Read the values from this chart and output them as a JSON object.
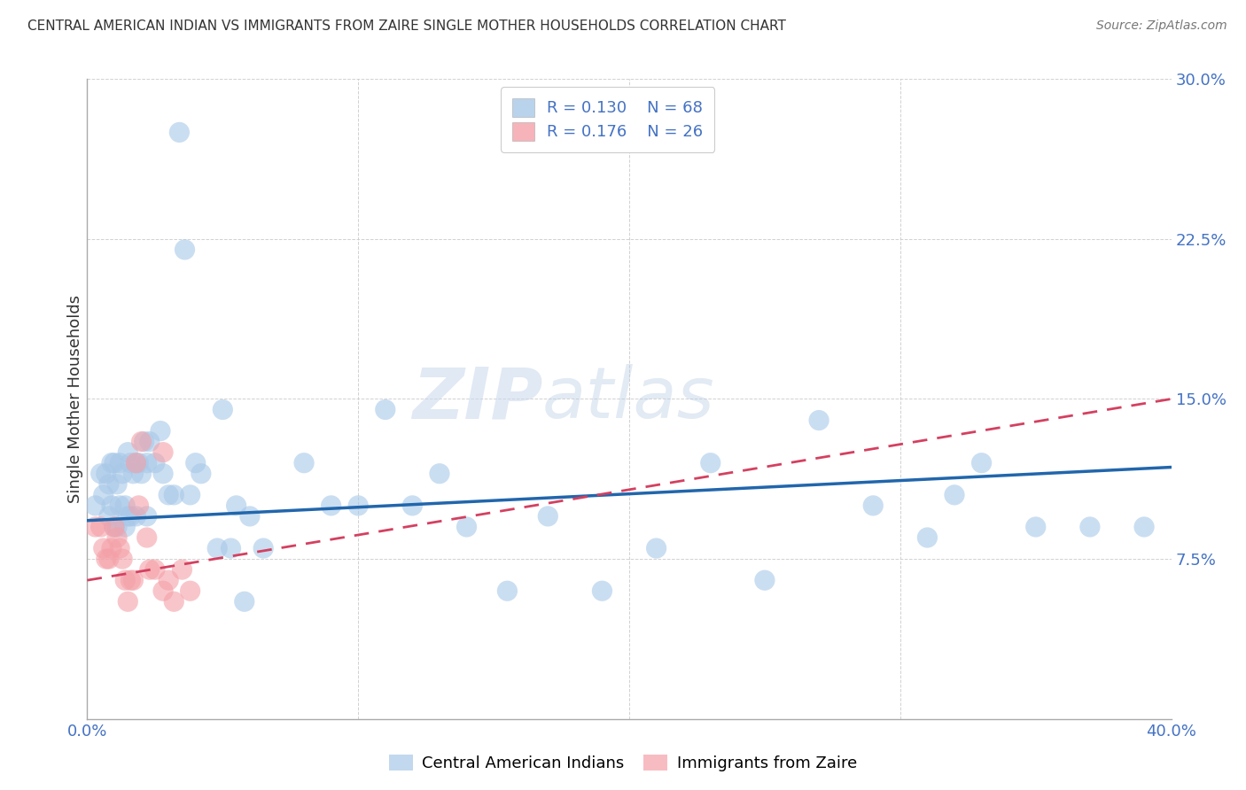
{
  "title": "CENTRAL AMERICAN INDIAN VS IMMIGRANTS FROM ZAIRE SINGLE MOTHER HOUSEHOLDS CORRELATION CHART",
  "source": "Source: ZipAtlas.com",
  "ylabel": "Single Mother Households",
  "xlim": [
    0.0,
    0.4
  ],
  "ylim": [
    0.0,
    0.3
  ],
  "xticks": [
    0.0,
    0.1,
    0.2,
    0.3,
    0.4
  ],
  "xticklabels": [
    "0.0%",
    "",
    "",
    "",
    "40.0%"
  ],
  "yticks": [
    0.0,
    0.075,
    0.15,
    0.225,
    0.3
  ],
  "yticklabels": [
    "",
    "7.5%",
    "15.0%",
    "22.5%",
    "30.0%"
  ],
  "legend1_R": "0.130",
  "legend1_N": "68",
  "legend2_R": "0.176",
  "legend2_N": "26",
  "blue_color": "#a8c8e8",
  "pink_color": "#f4a0a8",
  "blue_line_color": "#2166ac",
  "pink_line_color": "#d44060",
  "watermark_zip": "ZIP",
  "watermark_atlas": "atlas",
  "blue_scatter_x": [
    0.003,
    0.005,
    0.006,
    0.007,
    0.008,
    0.008,
    0.009,
    0.009,
    0.01,
    0.01,
    0.011,
    0.011,
    0.012,
    0.012,
    0.013,
    0.014,
    0.014,
    0.015,
    0.015,
    0.016,
    0.016,
    0.017,
    0.018,
    0.018,
    0.019,
    0.02,
    0.021,
    0.022,
    0.022,
    0.023,
    0.025,
    0.027,
    0.028,
    0.03,
    0.032,
    0.034,
    0.036,
    0.038,
    0.04,
    0.05,
    0.055,
    0.06,
    0.065,
    0.08,
    0.09,
    0.1,
    0.11,
    0.12,
    0.13,
    0.14,
    0.155,
    0.17,
    0.19,
    0.21,
    0.23,
    0.25,
    0.27,
    0.29,
    0.31,
    0.32,
    0.33,
    0.35,
    0.37,
    0.39,
    0.042,
    0.048,
    0.053,
    0.058
  ],
  "blue_scatter_y": [
    0.1,
    0.115,
    0.105,
    0.115,
    0.11,
    0.095,
    0.12,
    0.1,
    0.12,
    0.09,
    0.11,
    0.09,
    0.12,
    0.1,
    0.115,
    0.1,
    0.09,
    0.125,
    0.095,
    0.12,
    0.095,
    0.115,
    0.12,
    0.095,
    0.12,
    0.115,
    0.13,
    0.12,
    0.095,
    0.13,
    0.12,
    0.135,
    0.115,
    0.105,
    0.105,
    0.275,
    0.22,
    0.105,
    0.12,
    0.145,
    0.1,
    0.095,
    0.08,
    0.12,
    0.1,
    0.1,
    0.145,
    0.1,
    0.115,
    0.09,
    0.06,
    0.095,
    0.06,
    0.08,
    0.12,
    0.065,
    0.14,
    0.1,
    0.085,
    0.105,
    0.12,
    0.09,
    0.09,
    0.09,
    0.115,
    0.08,
    0.08,
    0.055
  ],
  "pink_scatter_x": [
    0.003,
    0.005,
    0.006,
    0.007,
    0.008,
    0.009,
    0.01,
    0.011,
    0.012,
    0.013,
    0.014,
    0.015,
    0.016,
    0.017,
    0.018,
    0.019,
    0.02,
    0.022,
    0.023,
    0.025,
    0.028,
    0.03,
    0.032,
    0.035,
    0.038,
    0.028
  ],
  "pink_scatter_y": [
    0.09,
    0.09,
    0.08,
    0.075,
    0.075,
    0.08,
    0.09,
    0.085,
    0.08,
    0.075,
    0.065,
    0.055,
    0.065,
    0.065,
    0.12,
    0.1,
    0.13,
    0.085,
    0.07,
    0.07,
    0.06,
    0.065,
    0.055,
    0.07,
    0.06,
    0.125
  ],
  "blue_line_x": [
    0.0,
    0.4
  ],
  "blue_line_y": [
    0.093,
    0.118
  ],
  "pink_line_x": [
    0.0,
    0.4
  ],
  "pink_line_y": [
    0.065,
    0.15
  ]
}
